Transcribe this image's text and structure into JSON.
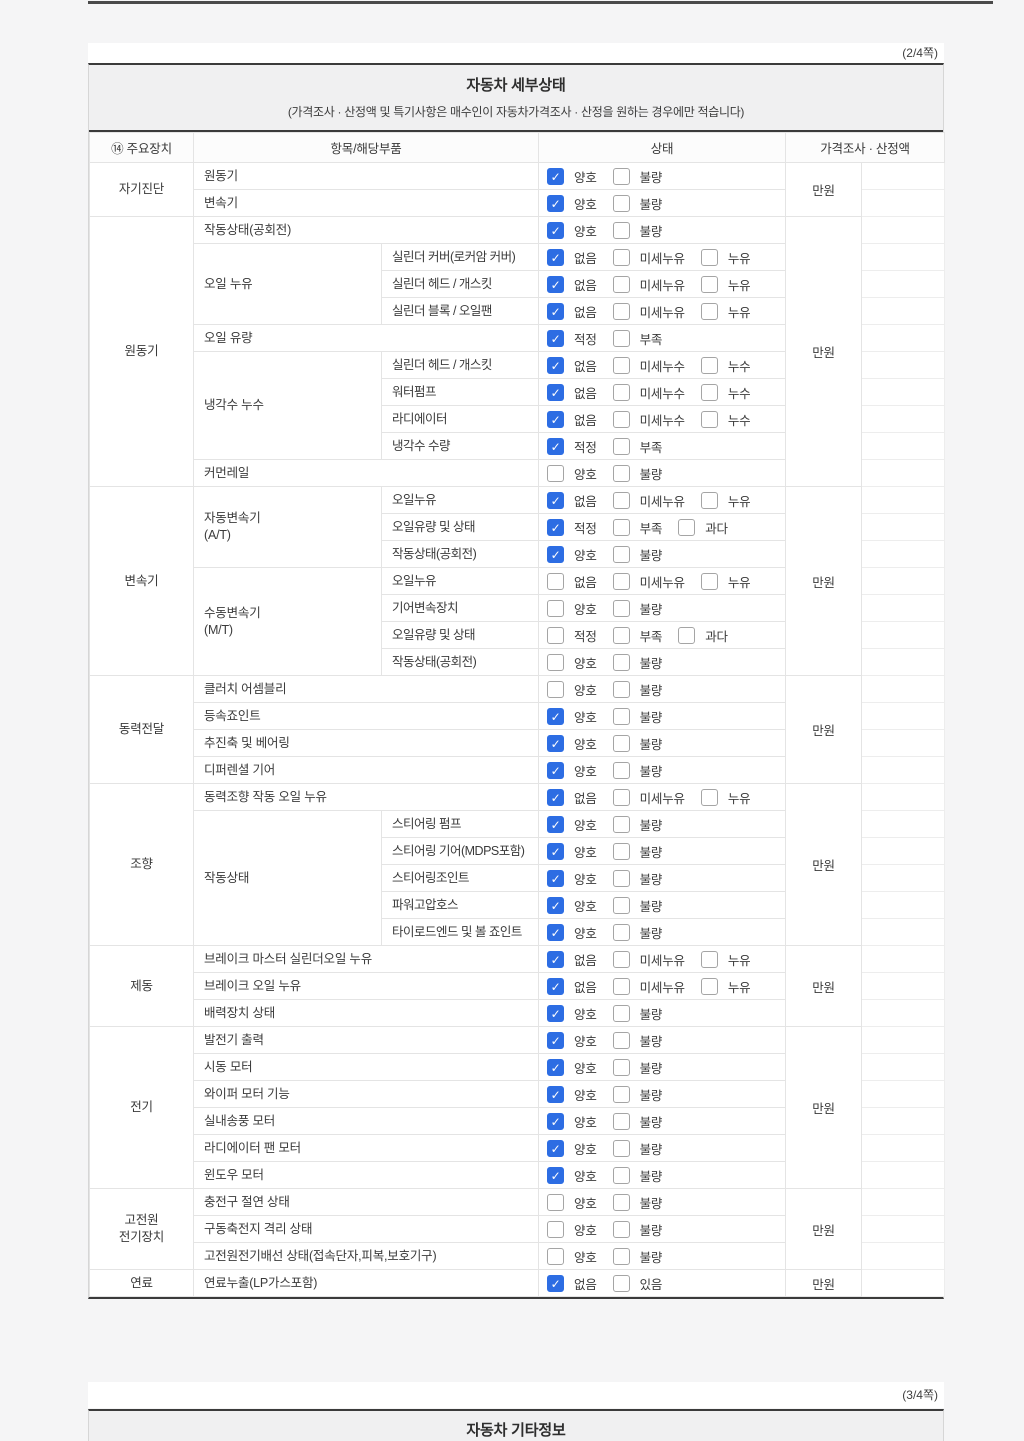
{
  "page": {
    "top_page_indicator": "(2/4쪽)",
    "bottom_page_indicator": "(3/4쪽)"
  },
  "detail_table": {
    "title": "자동차 세부상태",
    "subtitle": "(가격조사 · 산정액 및 특기사항은 매수인이 자동차가격조사 · 산정을 원하는 경우에만 적습니다)",
    "columns": [
      "⑭ 주요장치",
      "항목/해당부품",
      "상태",
      "가격조사 · 산정액"
    ],
    "accent_color": "#2d6de3",
    "sections": [
      {
        "device": "자기진단",
        "price_label": "만원",
        "rows": [
          {
            "item": "원동기",
            "options": [
              {
                "label": "양호",
                "checked": true
              },
              {
                "label": "불량",
                "checked": false
              }
            ]
          },
          {
            "item": "변속기",
            "options": [
              {
                "label": "양호",
                "checked": true
              },
              {
                "label": "불량",
                "checked": false
              }
            ]
          }
        ]
      },
      {
        "device": "원동기",
        "price_label": "만원",
        "rows": [
          {
            "item": "작동상태(공회전)",
            "options": [
              {
                "label": "양호",
                "checked": true
              },
              {
                "label": "불량",
                "checked": false
              }
            ]
          },
          {
            "group": "오일 누유",
            "item": "실린더 커버(로커암 커버)",
            "options": [
              {
                "label": "없음",
                "checked": true
              },
              {
                "label": "미세누유",
                "checked": false
              },
              {
                "label": "누유",
                "checked": false
              }
            ]
          },
          {
            "group": "오일 누유",
            "item": "실린더 헤드 / 개스킷",
            "options": [
              {
                "label": "없음",
                "checked": true
              },
              {
                "label": "미세누유",
                "checked": false
              },
              {
                "label": "누유",
                "checked": false
              }
            ]
          },
          {
            "group": "오일 누유",
            "item": "실린더 블록 / 오일팬",
            "options": [
              {
                "label": "없음",
                "checked": true
              },
              {
                "label": "미세누유",
                "checked": false
              },
              {
                "label": "누유",
                "checked": false
              }
            ]
          },
          {
            "item": "오일 유량",
            "options": [
              {
                "label": "적정",
                "checked": true
              },
              {
                "label": "부족",
                "checked": false
              }
            ]
          },
          {
            "group": "냉각수 누수",
            "item": "실린더 헤드 / 개스킷",
            "options": [
              {
                "label": "없음",
                "checked": true
              },
              {
                "label": "미세누수",
                "checked": false
              },
              {
                "label": "누수",
                "checked": false
              }
            ]
          },
          {
            "group": "냉각수 누수",
            "item": "워터펌프",
            "options": [
              {
                "label": "없음",
                "checked": true
              },
              {
                "label": "미세누수",
                "checked": false
              },
              {
                "label": "누수",
                "checked": false
              }
            ]
          },
          {
            "group": "냉각수 누수",
            "item": "라디에이터",
            "options": [
              {
                "label": "없음",
                "checked": true
              },
              {
                "label": "미세누수",
                "checked": false
              },
              {
                "label": "누수",
                "checked": false
              }
            ]
          },
          {
            "group": "냉각수 누수",
            "item": "냉각수 수량",
            "options": [
              {
                "label": "적정",
                "checked": true
              },
              {
                "label": "부족",
                "checked": false
              }
            ]
          },
          {
            "item": "커먼레일",
            "options": [
              {
                "label": "양호",
                "checked": false
              },
              {
                "label": "불량",
                "checked": false
              }
            ]
          }
        ]
      },
      {
        "device": "변속기",
        "price_label": "만원",
        "rows": [
          {
            "group": "자동변속기\n(A/T)",
            "item": "오일누유",
            "options": [
              {
                "label": "없음",
                "checked": true
              },
              {
                "label": "미세누유",
                "checked": false
              },
              {
                "label": "누유",
                "checked": false
              }
            ]
          },
          {
            "group": "자동변속기\n(A/T)",
            "item": "오일유량 및 상태",
            "options": [
              {
                "label": "적정",
                "checked": true
              },
              {
                "label": "부족",
                "checked": false
              },
              {
                "label": "과다",
                "checked": false
              }
            ]
          },
          {
            "group": "자동변속기\n(A/T)",
            "item": "작동상태(공회전)",
            "options": [
              {
                "label": "양호",
                "checked": true
              },
              {
                "label": "불량",
                "checked": false
              }
            ]
          },
          {
            "group": "수동변속기\n(M/T)",
            "item": "오일누유",
            "options": [
              {
                "label": "없음",
                "checked": false
              },
              {
                "label": "미세누유",
                "checked": false
              },
              {
                "label": "누유",
                "checked": false
              }
            ]
          },
          {
            "group": "수동변속기\n(M/T)",
            "item": "기어변속장치",
            "options": [
              {
                "label": "양호",
                "checked": false
              },
              {
                "label": "불량",
                "checked": false
              }
            ]
          },
          {
            "group": "수동변속기\n(M/T)",
            "item": "오일유량 및 상태",
            "options": [
              {
                "label": "적정",
                "checked": false
              },
              {
                "label": "부족",
                "checked": false
              },
              {
                "label": "과다",
                "checked": false
              }
            ]
          },
          {
            "group": "수동변속기\n(M/T)",
            "item": "작동상태(공회전)",
            "options": [
              {
                "label": "양호",
                "checked": false
              },
              {
                "label": "불량",
                "checked": false
              }
            ]
          }
        ]
      },
      {
        "device": "동력전달",
        "price_label": "만원",
        "rows": [
          {
            "item": "클러치 어셈블리",
            "options": [
              {
                "label": "양호",
                "checked": false
              },
              {
                "label": "불량",
                "checked": false
              }
            ]
          },
          {
            "item": "등속죠인트",
            "options": [
              {
                "label": "양호",
                "checked": true
              },
              {
                "label": "불량",
                "checked": false
              }
            ]
          },
          {
            "item": "추진축 및 베어링",
            "options": [
              {
                "label": "양호",
                "checked": true
              },
              {
                "label": "불량",
                "checked": false
              }
            ]
          },
          {
            "item": "디퍼렌셜 기어",
            "options": [
              {
                "label": "양호",
                "checked": true
              },
              {
                "label": "불량",
                "checked": false
              }
            ]
          }
        ]
      },
      {
        "device": "조향",
        "price_label": "만원",
        "rows": [
          {
            "item": "동력조향 작동 오일 누유",
            "options": [
              {
                "label": "없음",
                "checked": true
              },
              {
                "label": "미세누유",
                "checked": false
              },
              {
                "label": "누유",
                "checked": false
              }
            ]
          },
          {
            "group": "작동상태",
            "item": "스티어링 펌프",
            "options": [
              {
                "label": "양호",
                "checked": true
              },
              {
                "label": "불량",
                "checked": false
              }
            ]
          },
          {
            "group": "작동상태",
            "item": "스티어링 기어(MDPS포함)",
            "options": [
              {
                "label": "양호",
                "checked": true
              },
              {
                "label": "불량",
                "checked": false
              }
            ]
          },
          {
            "group": "작동상태",
            "item": "스티어링조인트",
            "options": [
              {
                "label": "양호",
                "checked": true
              },
              {
                "label": "불량",
                "checked": false
              }
            ]
          },
          {
            "group": "작동상태",
            "item": "파워고압호스",
            "options": [
              {
                "label": "양호",
                "checked": true
              },
              {
                "label": "불량",
                "checked": false
              }
            ]
          },
          {
            "group": "작동상태",
            "item": "타이로드엔드 및 볼 죠인트",
            "options": [
              {
                "label": "양호",
                "checked": true
              },
              {
                "label": "불량",
                "checked": false
              }
            ]
          }
        ]
      },
      {
        "device": "제동",
        "price_label": "만원",
        "rows": [
          {
            "item": "브레이크 마스터 실린더오일 누유",
            "options": [
              {
                "label": "없음",
                "checked": true
              },
              {
                "label": "미세누유",
                "checked": false
              },
              {
                "label": "누유",
                "checked": false
              }
            ]
          },
          {
            "item": "브레이크 오일 누유",
            "options": [
              {
                "label": "없음",
                "checked": true
              },
              {
                "label": "미세누유",
                "checked": false
              },
              {
                "label": "누유",
                "checked": false
              }
            ]
          },
          {
            "item": "배력장치 상태",
            "options": [
              {
                "label": "양호",
                "checked": true
              },
              {
                "label": "불량",
                "checked": false
              }
            ]
          }
        ]
      },
      {
        "device": "전기",
        "price_label": "만원",
        "rows": [
          {
            "item": "발전기 출력",
            "options": [
              {
                "label": "양호",
                "checked": true
              },
              {
                "label": "불량",
                "checked": false
              }
            ]
          },
          {
            "item": "시동 모터",
            "options": [
              {
                "label": "양호",
                "checked": true
              },
              {
                "label": "불량",
                "checked": false
              }
            ]
          },
          {
            "item": "와이퍼 모터 기능",
            "options": [
              {
                "label": "양호",
                "checked": true
              },
              {
                "label": "불량",
                "checked": false
              }
            ]
          },
          {
            "item": "실내송풍 모터",
            "options": [
              {
                "label": "양호",
                "checked": true
              },
              {
                "label": "불량",
                "checked": false
              }
            ]
          },
          {
            "item": "라디에이터 팬 모터",
            "options": [
              {
                "label": "양호",
                "checked": true
              },
              {
                "label": "불량",
                "checked": false
              }
            ]
          },
          {
            "item": "윈도우 모터",
            "options": [
              {
                "label": "양호",
                "checked": true
              },
              {
                "label": "불량",
                "checked": false
              }
            ]
          }
        ]
      },
      {
        "device": "고전원\n전기장치",
        "price_label": "만원",
        "rows": [
          {
            "item": "충전구 절연 상태",
            "options": [
              {
                "label": "양호",
                "checked": false
              },
              {
                "label": "불량",
                "checked": false
              }
            ]
          },
          {
            "item": "구동축전지 격리 상태",
            "options": [
              {
                "label": "양호",
                "checked": false
              },
              {
                "label": "불량",
                "checked": false
              }
            ]
          },
          {
            "item": "고전원전기배선 상태(접속단자,피복,보호기구)",
            "options": [
              {
                "label": "양호",
                "checked": false
              },
              {
                "label": "불량",
                "checked": false
              }
            ]
          }
        ]
      },
      {
        "device": "연료",
        "price_label": "만원",
        "rows": [
          {
            "item": "연료누출(LP가스포함)",
            "options": [
              {
                "label": "없음",
                "checked": true
              },
              {
                "label": "있음",
                "checked": false
              }
            ]
          }
        ]
      }
    ]
  },
  "other_info_table": {
    "title": "자동차 기타정보"
  }
}
